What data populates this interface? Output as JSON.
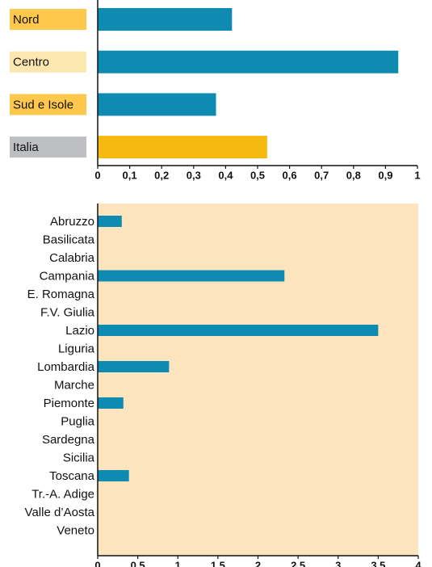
{
  "chart_data": [
    {
      "type": "barh",
      "categories": [
        "Nord",
        "Centro",
        "Sud e Isole",
        "Italia"
      ],
      "values": [
        0.42,
        0.94,
        0.37,
        0.53
      ],
      "colors": [
        "#0f8bb2",
        "#0f8bb2",
        "#0f8bb2",
        "#f6b90f"
      ],
      "category_colors": [
        "#fdc84c",
        "#fde7b0",
        "#fdc84c",
        "#bebfc3"
      ],
      "xlim": [
        0,
        1
      ],
      "xticks": [
        0,
        {
          "value": 0.1,
          "label": "0,1"
        },
        {
          "value": 0.2,
          "label": "0,2"
        },
        {
          "value": 0.3,
          "label": "0,3"
        },
        {
          "value": 0.4,
          "label": "0,4"
        },
        {
          "value": 0.5,
          "label": "0,5"
        },
        {
          "value": 0.6,
          "label": "0,6"
        },
        {
          "value": 0.7,
          "label": "0,7"
        },
        {
          "value": 0.8,
          "label": "0,8"
        },
        {
          "value": 0.9,
          "label": "0,9"
        },
        1
      ]
    },
    {
      "type": "barh",
      "categories": [
        "Abruzzo",
        "Basilicata",
        "Calabria",
        "Campania",
        "E. Romagna",
        "F.V. Giulia",
        "Lazio",
        "Liguria",
        "Lombardia",
        "Marche",
        "Piemonte",
        "Puglia",
        "Sardegna",
        "Sicilia",
        "Toscana",
        "Tr.-A. Adige",
        "Valle d’Aosta",
        "Veneto"
      ],
      "values": [
        0.3,
        0,
        0,
        2.33,
        0,
        0,
        3.5,
        0,
        0.89,
        0,
        0.32,
        0,
        0,
        0,
        0.39,
        0,
        0,
        0
      ],
      "color": "#0f8bb2",
      "background": "#fce5be",
      "xlim": [
        0,
        4
      ],
      "xticks": [
        0,
        {
          "value": 0.5,
          "label": "0,5"
        },
        1,
        {
          "value": 1.5,
          "label": "1,5"
        },
        2,
        {
          "value": 2.5,
          "label": "2,5"
        },
        3,
        {
          "value": 3.5,
          "label": "3,5"
        },
        4
      ]
    }
  ]
}
